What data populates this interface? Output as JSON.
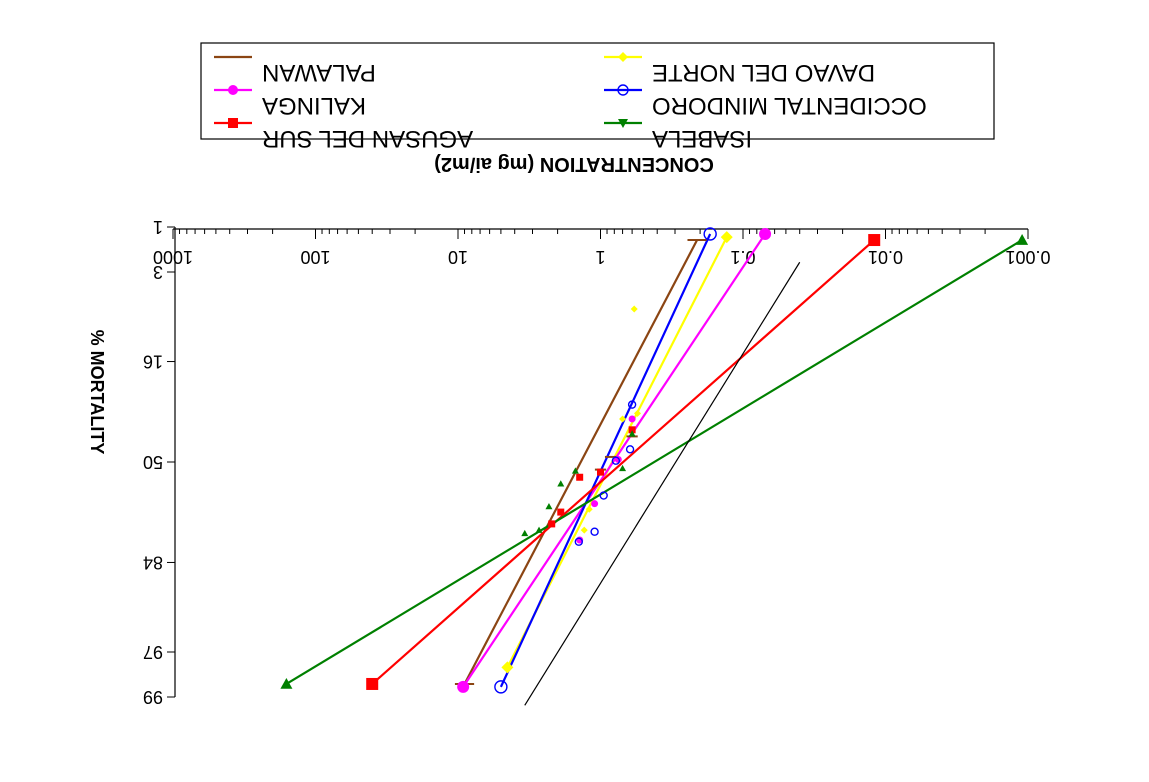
{
  "chart_data": {
    "type": "scatter",
    "title": "",
    "xlabel": "CONCENTRATION (mg ai/m2)",
    "ylabel": "% MORTALITY",
    "x_scale": "log",
    "xlim": [
      0.001,
      1000
    ],
    "x_ticks": [
      {
        "value": 0.001,
        "label": "0.001"
      },
      {
        "value": 0.01,
        "label": "0.01"
      },
      {
        "value": 0.1,
        "label": "0.1"
      },
      {
        "value": 1,
        "label": "1"
      },
      {
        "value": 10,
        "label": "10"
      },
      {
        "value": 100,
        "label": "100"
      },
      {
        "value": 1000,
        "label": "1000"
      }
    ],
    "y_scale": "probit",
    "ylim": [
      1,
      99
    ],
    "y_ticks": [
      {
        "value": 1,
        "label": "1"
      },
      {
        "value": 3,
        "label": "3"
      },
      {
        "value": 16,
        "label": "16"
      },
      {
        "value": 50,
        "label": "50"
      },
      {
        "value": 84,
        "label": "84"
      },
      {
        "value": 97,
        "label": "97"
      },
      {
        "value": 99,
        "label": "99"
      }
    ],
    "orientation": "rotated-180",
    "grid": false,
    "legend_position": "top",
    "series": [
      {
        "name": "PALAWAN",
        "color": "#8b4513",
        "marker": "dash",
        "line": [
          [
            0.21,
            1.4
          ],
          [
            9.0,
            98.6
          ]
        ],
        "points": [
          [
            0.21,
            1.4
          ],
          [
            0.6,
            40.0
          ],
          [
            0.85,
            48.0
          ],
          [
            1.0,
            53.0
          ],
          [
            9.0,
            98.6
          ]
        ]
      },
      {
        "name": "DAVAO DEL NORTE",
        "color": "#ffff00",
        "marker": "diamond",
        "line": [
          [
            0.13,
            1.3
          ],
          [
            4.5,
            97.9
          ]
        ],
        "points": [
          [
            0.13,
            1.3
          ],
          [
            0.58,
            6.5
          ],
          [
            0.55,
            31.5
          ],
          [
            0.7,
            33.5
          ],
          [
            1.2,
            68.0
          ],
          [
            1.3,
            75.0
          ],
          [
            4.5,
            97.9
          ]
        ]
      },
      {
        "name": "KALINGA",
        "color": "#ff00ff",
        "marker": "circle",
        "line": [
          [
            0.07,
            1.2
          ],
          [
            9.2,
            98.7
          ]
        ],
        "points": [
          [
            0.07,
            1.2
          ],
          [
            0.6,
            33.5
          ],
          [
            0.75,
            49.0
          ],
          [
            1.1,
            66.0
          ],
          [
            1.4,
            78.0
          ],
          [
            9.2,
            98.7
          ]
        ]
      },
      {
        "name": "OCCIDENTAL MINDORO",
        "color": "#0000ff",
        "marker": "open-circle",
        "line": [
          [
            0.17,
            1.2
          ],
          [
            5.0,
            98.7
          ]
        ],
        "points": [
          [
            0.17,
            1.2
          ],
          [
            0.6,
            28.5
          ],
          [
            0.62,
            45.0
          ],
          [
            0.78,
            49.5
          ],
          [
            0.95,
            63.0
          ],
          [
            1.1,
            75.5
          ],
          [
            1.42,
            78.5
          ],
          [
            5.0,
            98.7
          ]
        ]
      },
      {
        "name": "AGUSAN DEL SUR",
        "color": "#ff0000",
        "marker": "square",
        "line": [
          [
            0.012,
            1.4
          ],
          [
            40.0,
            98.6
          ]
        ],
        "points": [
          [
            0.012,
            1.4
          ],
          [
            0.6,
            37.5
          ],
          [
            1.0,
            54.0
          ],
          [
            1.4,
            56.0
          ],
          [
            1.9,
            69.0
          ],
          [
            2.2,
            73.0
          ],
          [
            40.0,
            98.6
          ]
        ]
      },
      {
        "name": "ISABELA",
        "color": "#008000",
        "marker": "triangle-down",
        "line": [
          [
            0.0011,
            1.4
          ],
          [
            160.0,
            98.6
          ]
        ],
        "points": [
          [
            0.0011,
            1.4
          ],
          [
            0.6,
            39.0
          ],
          [
            0.7,
            52.5
          ],
          [
            1.5,
            53.5
          ],
          [
            1.9,
            58.5
          ],
          [
            2.3,
            67.0
          ],
          [
            2.7,
            75.0
          ],
          [
            3.4,
            76.0
          ],
          [
            160.0,
            98.6
          ]
        ]
      },
      {
        "name": "",
        "color": "#000000",
        "marker": "none",
        "line": [
          [
            0.04,
            2.4
          ],
          [
            3.4,
            99.2
          ]
        ],
        "points": []
      }
    ]
  }
}
